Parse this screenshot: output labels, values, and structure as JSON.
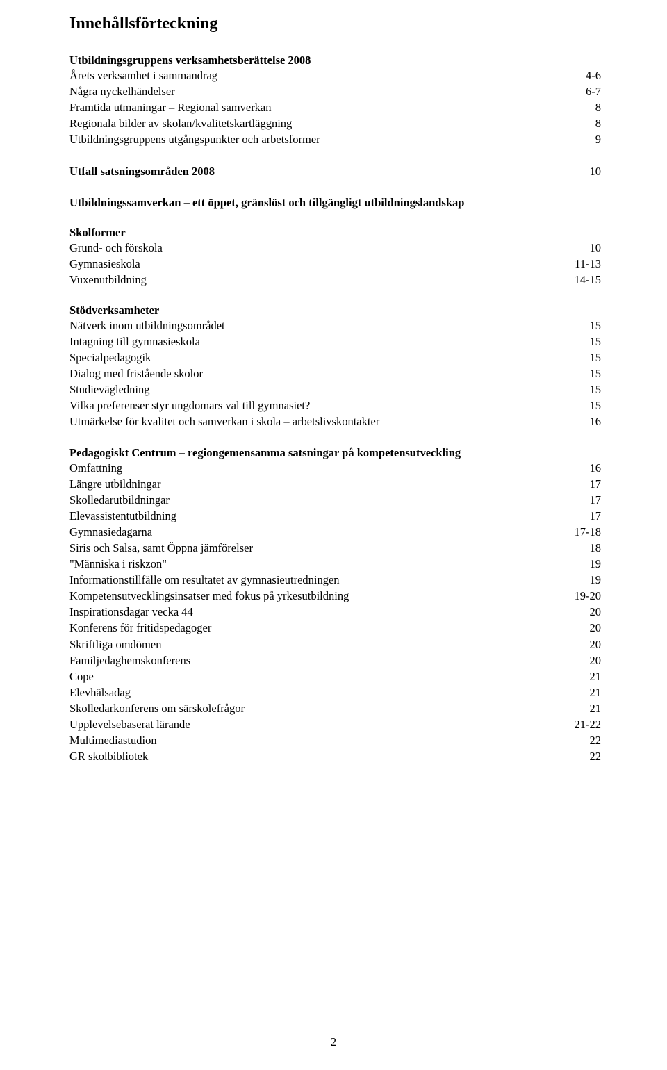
{
  "title": "Innehållsförteckning",
  "blocks": [
    {
      "heading": "Utbildningsgruppens verksamhetsberättelse 2008",
      "rows": [
        {
          "label": "Årets verksamhet i sammandrag",
          "page": "4-6"
        },
        {
          "label": "Några nyckelhändelser",
          "page": "6-7"
        },
        {
          "label": "Framtida utmaningar – Regional samverkan",
          "page": "8"
        },
        {
          "label": "Regionala bilder av skolan/kvalitetskartläggning",
          "page": "8"
        },
        {
          "label": "Utbildningsgruppens utgångspunkter och arbetsformer",
          "page": "9"
        }
      ]
    },
    {
      "rows": [
        {
          "label": "Utfall satsningsområden 2008",
          "bold": true,
          "page": "10"
        }
      ]
    },
    {
      "heading": "Utbildningssamverkan – ett öppet, gränslöst och tillgängligt utbildningslandskap",
      "rows": []
    },
    {
      "heading": "Skolformer",
      "rows": [
        {
          "label": "Grund- och förskola",
          "page": "10"
        },
        {
          "label": "Gymnasieskola",
          "page": "11-13"
        },
        {
          "label": "Vuxenutbildning",
          "page": "14-15"
        }
      ]
    },
    {
      "heading": "Stödverksamheter",
      "rows": [
        {
          "label": "Nätverk inom utbildningsområdet",
          "page": "15"
        },
        {
          "label": "Intagning till gymnasieskola",
          "page": "15"
        },
        {
          "label": "Specialpedagogik",
          "page": "15"
        },
        {
          "label": "Dialog med fristående skolor",
          "page": "15"
        },
        {
          "label": "Studievägledning",
          "page": "15"
        },
        {
          "label": "Vilka preferenser styr ungdomars val till gymnasiet?",
          "page": "15"
        },
        {
          "label": "Utmärkelse för kvalitet och samverkan i skola – arbetslivskontakter",
          "page": "16"
        }
      ]
    },
    {
      "heading": "Pedagogiskt Centrum – regiongemensamma satsningar på kompetensutveckling",
      "rows": [
        {
          "label": "Omfattning",
          "page": "16"
        },
        {
          "label": "Längre utbildningar",
          "page": "17"
        },
        {
          "label": "Skolledarutbildningar",
          "page": "17"
        },
        {
          "label": "Elevassistentutbildning",
          "page": "17"
        },
        {
          "label": "Gymnasiedagarna",
          "page": "17-18"
        },
        {
          "label": "Siris och Salsa, samt Öppna jämförelser",
          "page": "18"
        },
        {
          "label": "\"Människa i riskzon\"",
          "page": "19"
        },
        {
          "label": "Informationstillfälle om resultatet av gymnasieutredningen",
          "page": "19"
        },
        {
          "label": "Kompetensutvecklingsinsatser med fokus på yrkesutbildning",
          "page": "19-20"
        },
        {
          "label": "Inspirationsdagar vecka 44",
          "page": "20"
        },
        {
          "label": "Konferens för fritidspedagoger",
          "page": "20"
        },
        {
          "label": "Skriftliga omdömen",
          "page": "20"
        },
        {
          "label": "Familjedaghemskonferens",
          "page": "20"
        },
        {
          "label": "Cope",
          "page": "21"
        },
        {
          "label": "Elevhälsadag",
          "page": "21"
        },
        {
          "label": "Skolledarkonferens om särskolefrågor",
          "page": "21"
        },
        {
          "label": "Upplevelsebaserat lärande",
          "page": "21-22"
        },
        {
          "label": "Multimediastudion",
          "page": "22"
        },
        {
          "label": "GR skolbibliotek",
          "page": "22"
        }
      ]
    }
  ],
  "pageNumber": "2"
}
